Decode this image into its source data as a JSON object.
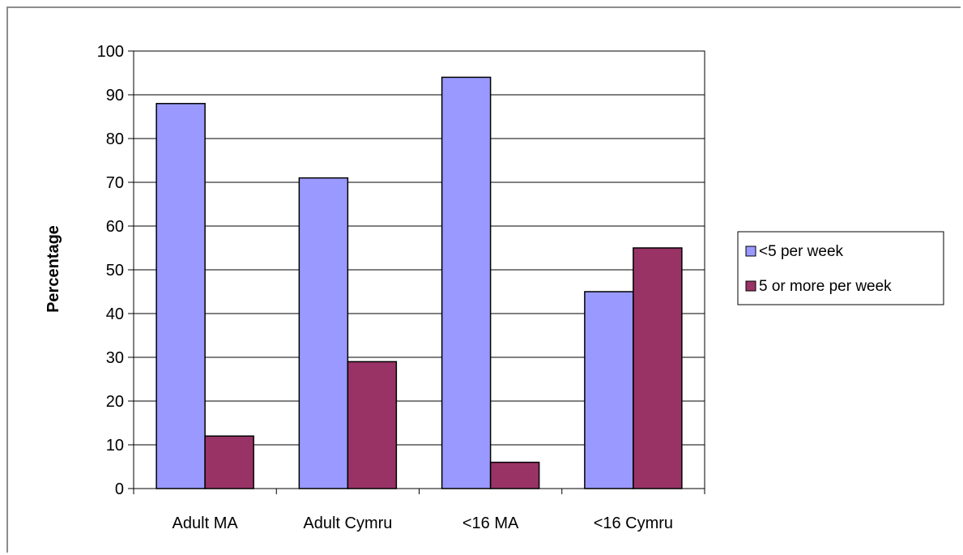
{
  "chart_data": {
    "type": "bar",
    "categories": [
      "Adult MA",
      "Adult Cymru",
      "<16 MA",
      "<16 Cymru"
    ],
    "series": [
      {
        "name": "<5 per week",
        "values": [
          88,
          71,
          94,
          45
        ],
        "color": "#9999ff"
      },
      {
        "name": "5 or more per week",
        "values": [
          12,
          29,
          6,
          55
        ],
        "color": "#993366"
      }
    ],
    "xlabel": "",
    "ylabel": "Percentage",
    "ylim": [
      0,
      100
    ],
    "yticks": [
      0,
      10,
      20,
      30,
      40,
      50,
      60,
      70,
      80,
      90,
      100
    ],
    "grid": true,
    "legend": "right"
  }
}
